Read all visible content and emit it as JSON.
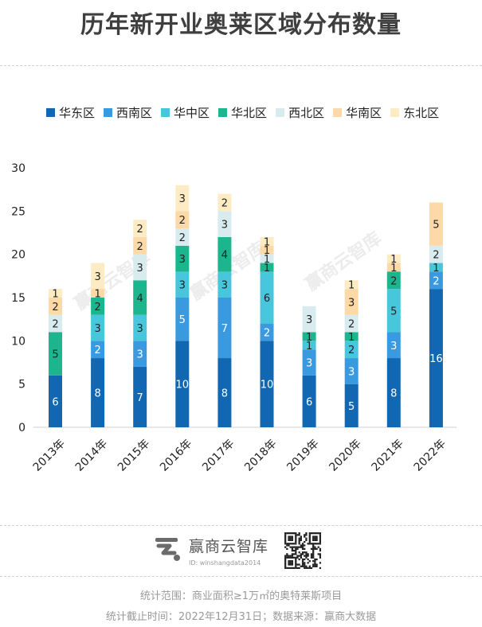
{
  "title": "历年新开业奥莱区域分布数量",
  "chart_data": {
    "type": "bar",
    "stacked": true,
    "categories": [
      "2013年",
      "2014年",
      "2015年",
      "2016年",
      "2017年",
      "2018年",
      "2019年",
      "2020年",
      "2021年",
      "2022年"
    ],
    "ylim": [
      0,
      30
    ],
    "yticks": [
      "0",
      "5",
      "10",
      "15",
      "20",
      "25",
      "30"
    ],
    "legend_position": "top",
    "grid": false,
    "series": [
      {
        "name": "华东区",
        "color": "#1167b1",
        "values": [
          6,
          8,
          7,
          10,
          8,
          10,
          6,
          5,
          8,
          16
        ]
      },
      {
        "name": "西南区",
        "color": "#3a9ae0",
        "values": [
          0,
          2,
          3,
          5,
          7,
          2,
          3,
          3,
          3,
          2
        ]
      },
      {
        "name": "华中区",
        "color": "#48c6dc",
        "values": [
          0,
          3,
          3,
          3,
          3,
          6,
          1,
          2,
          5,
          1
        ]
      },
      {
        "name": "华北区",
        "color": "#1db58d",
        "values": [
          5,
          2,
          4,
          3,
          4,
          1,
          1,
          1,
          2,
          0
        ]
      },
      {
        "name": "西北区",
        "color": "#d8ecef",
        "values": [
          2,
          0,
          3,
          2,
          3,
          1,
          3,
          2,
          0,
          2
        ]
      },
      {
        "name": "华南区",
        "color": "#fcd9a6",
        "values": [
          2,
          1,
          2,
          2,
          0,
          1,
          0,
          3,
          1,
          5
        ]
      },
      {
        "name": "东北区",
        "color": "#fdecc3",
        "values": [
          1,
          3,
          2,
          3,
          2,
          1,
          0,
          1,
          1,
          0
        ]
      }
    ]
  },
  "watermark": "赢商云智库",
  "footer": {
    "brand_name": "赢商云智库",
    "brand_id": "ID: winshangdata2014",
    "note_scope": "统计范围：商业面积≥1万㎡的奥特莱斯项目",
    "note_source": "统计截止时间：2022年12月31日；数据来源：赢商大数据"
  }
}
